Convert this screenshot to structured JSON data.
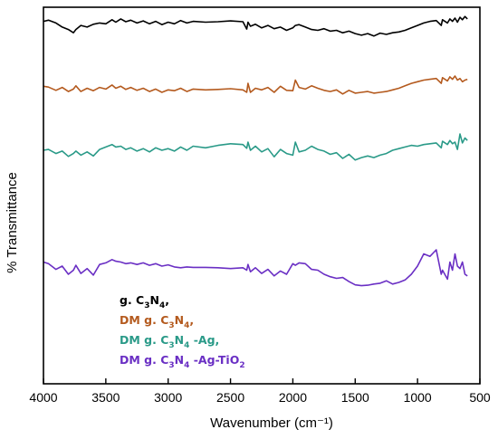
{
  "chart_data": {
    "type": "line",
    "title": "",
    "xlabel": "Wavenumber (cm⁻¹)",
    "ylabel": "% Transmittance",
    "xlim": [
      4000,
      500
    ],
    "x_reversed": true,
    "x_ticks": [
      "4000",
      "3500",
      "3000",
      "2500",
      "2000",
      "1500",
      "1000",
      "500"
    ],
    "y_ticks": [],
    "grid": false,
    "legend_position": "lower-left",
    "series": [
      {
        "name": "g. C3N4,",
        "label_parts": {
          "pre": "g. C",
          "sub1": "3",
          "mid": "N",
          "sub2": "4",
          "post": ","
        },
        "color": "#000000",
        "x": [
          4000,
          3960,
          3900,
          3850,
          3800,
          3760,
          3740,
          3700,
          3650,
          3600,
          3550,
          3500,
          3450,
          3420,
          3380,
          3340,
          3300,
          3250,
          3200,
          3150,
          3100,
          3050,
          3000,
          2950,
          2900,
          2850,
          2800,
          2700,
          2600,
          2500,
          2400,
          2370,
          2360,
          2340,
          2300,
          2250,
          2200,
          2150,
          2100,
          2050,
          2000,
          1980,
          1950,
          1900,
          1850,
          1800,
          1750,
          1700,
          1650,
          1600,
          1550,
          1500,
          1450,
          1400,
          1350,
          1300,
          1250,
          1200,
          1150,
          1100,
          1050,
          1000,
          950,
          900,
          850,
          810,
          800,
          760,
          740,
          720,
          700,
          680,
          660,
          640,
          620,
          600
        ],
        "y": [
          92,
          95,
          88,
          78,
          72,
          64,
          72,
          82,
          78,
          85,
          88,
          86,
          96,
          90,
          98,
          91,
          95,
          88,
          93,
          86,
          92,
          84,
          90,
          86,
          94,
          88,
          92,
          90,
          91,
          93,
          91,
          73,
          90,
          80,
          85,
          76,
          82,
          74,
          78,
          70,
          76,
          82,
          84,
          78,
          72,
          70,
          74,
          68,
          70,
          64,
          68,
          62,
          58,
          62,
          56,
          63,
          60,
          64,
          66,
          70,
          76,
          82,
          88,
          92,
          94,
          82,
          96,
          88,
          98,
          92,
          100,
          90,
          102,
          96,
          104,
          98
        ]
      },
      {
        "name": "DM g. C3N4,",
        "label_parts": {
          "pre": "DM g. C",
          "sub1": "3",
          "mid": "N",
          "sub2": "4",
          "post": ","
        },
        "color": "#b45a1e",
        "x": [
          4000,
          3960,
          3900,
          3850,
          3800,
          3760,
          3740,
          3700,
          3650,
          3600,
          3550,
          3500,
          3450,
          3420,
          3380,
          3340,
          3300,
          3250,
          3200,
          3150,
          3100,
          3050,
          3000,
          2950,
          2900,
          2850,
          2800,
          2700,
          2600,
          2500,
          2400,
          2370,
          2360,
          2340,
          2300,
          2250,
          2200,
          2150,
          2100,
          2050,
          2000,
          1980,
          1950,
          1900,
          1850,
          1800,
          1750,
          1700,
          1650,
          1600,
          1550,
          1500,
          1450,
          1400,
          1350,
          1300,
          1250,
          1200,
          1150,
          1100,
          1050,
          1000,
          950,
          900,
          850,
          810,
          800,
          760,
          740,
          720,
          700,
          680,
          660,
          640,
          620,
          600
        ],
        "y": [
          55,
          53,
          45,
          52,
          42,
          48,
          56,
          42,
          50,
          44,
          52,
          48,
          58,
          50,
          55,
          47,
          52,
          45,
          50,
          42,
          48,
          40,
          46,
          44,
          50,
          42,
          48,
          46,
          47,
          49,
          46,
          40,
          62,
          40,
          50,
          46,
          52,
          40,
          55,
          45,
          44,
          70,
          52,
          48,
          56,
          50,
          45,
          42,
          46,
          36,
          45,
          38,
          40,
          42,
          38,
          40,
          42,
          46,
          50,
          56,
          62,
          66,
          70,
          72,
          74,
          62,
          76,
          68,
          78,
          72,
          80,
          70,
          74,
          66,
          70,
          72
        ]
      },
      {
        "name": "DM g. C3N4 -Ag,",
        "label_parts": {
          "pre": "DM g. C",
          "sub1": "3",
          "mid": "N",
          "sub2": "4",
          "post": " -Ag,"
        },
        "color": "#2a9a88",
        "x": [
          4000,
          3960,
          3900,
          3850,
          3800,
          3760,
          3740,
          3700,
          3650,
          3600,
          3550,
          3500,
          3450,
          3420,
          3380,
          3340,
          3300,
          3250,
          3200,
          3150,
          3100,
          3050,
          3000,
          2950,
          2900,
          2850,
          2800,
          2700,
          2600,
          2500,
          2400,
          2370,
          2360,
          2340,
          2300,
          2250,
          2200,
          2150,
          2100,
          2050,
          2000,
          1980,
          1950,
          1900,
          1850,
          1800,
          1750,
          1700,
          1650,
          1600,
          1550,
          1500,
          1450,
          1400,
          1350,
          1300,
          1250,
          1200,
          1150,
          1100,
          1050,
          1000,
          950,
          900,
          850,
          810,
          800,
          760,
          740,
          720,
          700,
          680,
          660,
          640,
          620,
          600
        ],
        "y": [
          20,
          22,
          12,
          18,
          5,
          12,
          18,
          8,
          16,
          6,
          22,
          28,
          34,
          28,
          30,
          22,
          26,
          18,
          24,
          16,
          26,
          20,
          24,
          18,
          28,
          20,
          30,
          26,
          32,
          36,
          34,
          25,
          40,
          20,
          30,
          16,
          24,
          4,
          22,
          12,
          8,
          40,
          16,
          20,
          30,
          22,
          18,
          10,
          14,
          0,
          10,
          -4,
          2,
          6,
          2,
          8,
          12,
          20,
          24,
          28,
          32,
          30,
          34,
          36,
          38,
          26,
          42,
          34,
          44,
          36,
          40,
          22,
          60,
          38,
          50,
          44
        ]
      },
      {
        "name": "DM g. C3N4 -Ag-TiO2",
        "label_parts": {
          "pre": "DM g. C",
          "sub1": "3",
          "mid": "N",
          "sub2": "4",
          "post": " -Ag-TiO",
          "sub3": "2"
        },
        "color": "#6a2fc4",
        "x": [
          4000,
          3960,
          3900,
          3850,
          3800,
          3760,
          3740,
          3700,
          3650,
          3600,
          3550,
          3500,
          3450,
          3420,
          3380,
          3340,
          3300,
          3250,
          3200,
          3150,
          3100,
          3050,
          3000,
          2950,
          2900,
          2850,
          2800,
          2700,
          2600,
          2500,
          2400,
          2370,
          2360,
          2340,
          2300,
          2250,
          2200,
          2150,
          2100,
          2050,
          2000,
          1980,
          1950,
          1900,
          1850,
          1800,
          1750,
          1700,
          1650,
          1600,
          1550,
          1500,
          1450,
          1400,
          1350,
          1300,
          1250,
          1200,
          1150,
          1100,
          1050,
          1000,
          950,
          900,
          850,
          810,
          800,
          760,
          740,
          720,
          700,
          680,
          660,
          640,
          620,
          600
        ],
        "y": [
          -10,
          -14,
          -28,
          -20,
          -40,
          -30,
          -18,
          -38,
          -26,
          -42,
          -16,
          -12,
          -4,
          -8,
          -10,
          -14,
          -12,
          -16,
          -12,
          -18,
          -14,
          -20,
          -17,
          -22,
          -24,
          -22,
          -23,
          -23,
          -24,
          -26,
          -24,
          -30,
          -16,
          -34,
          -24,
          -38,
          -28,
          -44,
          -32,
          -40,
          -14,
          -18,
          -12,
          -14,
          -28,
          -30,
          -40,
          -46,
          -50,
          -48,
          -58,
          -66,
          -68,
          -67,
          -64,
          -62,
          -56,
          -64,
          -60,
          -54,
          -40,
          -20,
          10,
          4,
          20,
          -40,
          -30,
          -52,
          -10,
          -30,
          10,
          -20,
          -26,
          -10,
          -40,
          -44
        ]
      }
    ]
  }
}
